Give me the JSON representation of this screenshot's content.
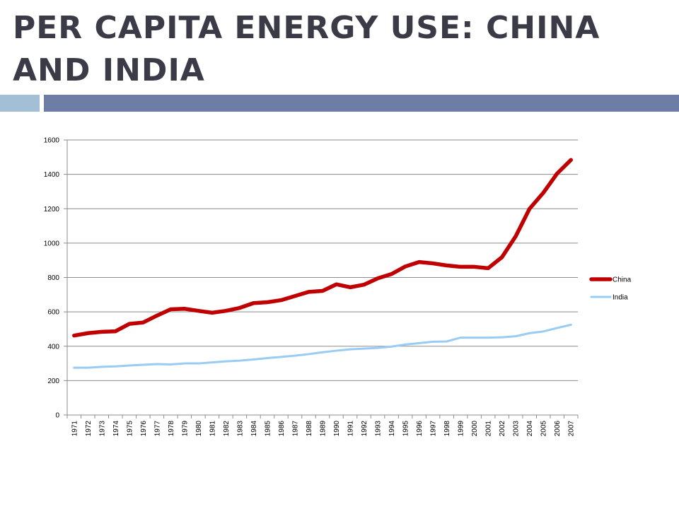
{
  "slide": {
    "title": "PER CAPITA ENERGY USE: CHINA AND INDIA"
  },
  "colors": {
    "title": "#3b3b47",
    "accent_light": "#a3bfd6",
    "accent_dark": "#6d7ea6",
    "china": "#c00000",
    "india": "#99ccf5"
  },
  "chart_data": {
    "type": "line",
    "title": "",
    "xlabel": "",
    "ylabel": "",
    "ylim": [
      0,
      1600
    ],
    "yticks": [
      0,
      200,
      400,
      600,
      800,
      1000,
      1200,
      1400,
      1600
    ],
    "grid": "horizontal",
    "legend": "right",
    "x": [
      "1971",
      "1972",
      "1973",
      "1974",
      "1975",
      "1976",
      "1977",
      "1978",
      "1979",
      "1980",
      "1981",
      "1982",
      "1983",
      "1984",
      "1985",
      "1986",
      "1987",
      "1988",
      "1989",
      "1990",
      "1991",
      "1992",
      "1993",
      "1994",
      "1995",
      "1996",
      "1997",
      "1998",
      "1999",
      "2000",
      "2001",
      "2002",
      "2003",
      "2004",
      "2005",
      "2006",
      "2007"
    ],
    "series": [
      {
        "name": "China",
        "color": "#c00000",
        "values": [
          462,
          476,
          484,
          487,
          530,
          538,
          578,
          615,
          618,
          606,
          595,
          606,
          623,
          651,
          656,
          668,
          692,
          716,
          722,
          760,
          743,
          758,
          795,
          820,
          864,
          890,
          882,
          870,
          862,
          862,
          854,
          918,
          1040,
          1200,
          1293,
          1405,
          1484
        ]
      },
      {
        "name": "India",
        "color": "#99ccf5",
        "values": [
          275,
          275,
          280,
          283,
          288,
          292,
          296,
          294,
          300,
          300,
          306,
          312,
          316,
          323,
          331,
          338,
          345,
          354,
          365,
          374,
          382,
          386,
          390,
          398,
          410,
          418,
          426,
          428,
          450,
          450,
          450,
          452,
          458,
          476,
          486,
          506,
          525
        ]
      }
    ]
  }
}
